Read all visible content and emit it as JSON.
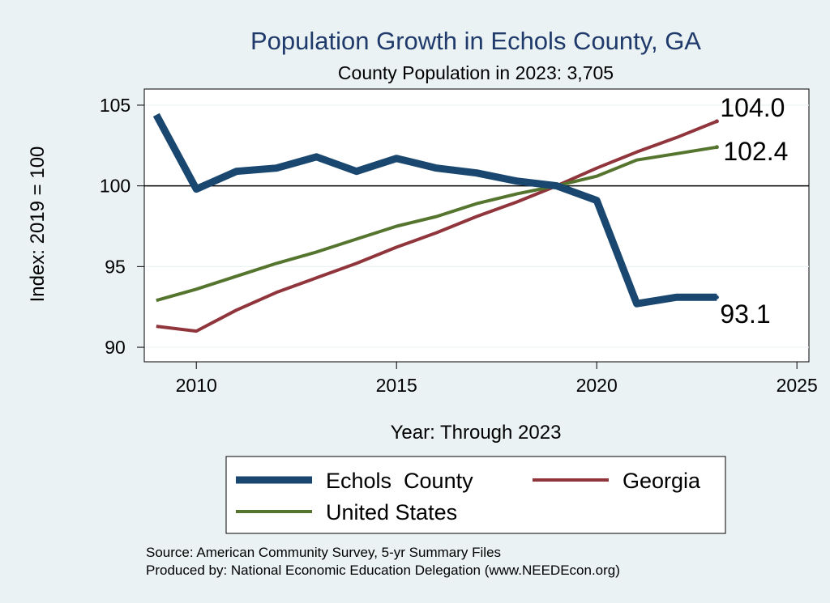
{
  "chart_data": {
    "type": "line",
    "title": "Population Growth in Echols County, GA",
    "subtitle": "County Population in 2023: 3,705",
    "xlabel": "Year: Through 2023",
    "ylabel": "Index: 2019 = 100",
    "xlim": [
      2008.7,
      2025.3
    ],
    "ylim": [
      89.1,
      106.0
    ],
    "xticks": [
      2010,
      2015,
      2020,
      2025
    ],
    "yticks": [
      90,
      95,
      100,
      105
    ],
    "reference_line": 100,
    "x": [
      2009,
      2010,
      2011,
      2012,
      2013,
      2014,
      2015,
      2016,
      2017,
      2018,
      2019,
      2020,
      2021,
      2022,
      2023
    ],
    "series": [
      {
        "name": "Echols  County",
        "color": "#1a476f",
        "values": [
          104.4,
          99.8,
          100.9,
          101.1,
          101.8,
          100.9,
          101.7,
          101.1,
          100.8,
          100.3,
          100.0,
          99.1,
          92.7,
          93.1,
          93.1
        ],
        "end_label": "93.1"
      },
      {
        "name": "Georgia",
        "color": "#90353b",
        "values": [
          91.3,
          91.0,
          92.3,
          93.4,
          94.3,
          95.2,
          96.2,
          97.1,
          98.1,
          99.0,
          100.0,
          101.1,
          102.1,
          103.0,
          104.0
        ],
        "end_label": "104.0"
      },
      {
        "name": "United States",
        "color": "#55752f",
        "values": [
          92.9,
          93.6,
          94.4,
          95.2,
          95.9,
          96.7,
          97.5,
          98.1,
          98.9,
          99.5,
          100.0,
          100.6,
          101.6,
          102.0,
          102.4
        ],
        "end_label": "102.4"
      }
    ],
    "legend_position": "bottom",
    "source_lines": [
      "Source: American Community Survey, 5-yr Summary Files",
      "Produced by: National Economic Education Delegation (www.NEEDEcon.org)"
    ]
  }
}
